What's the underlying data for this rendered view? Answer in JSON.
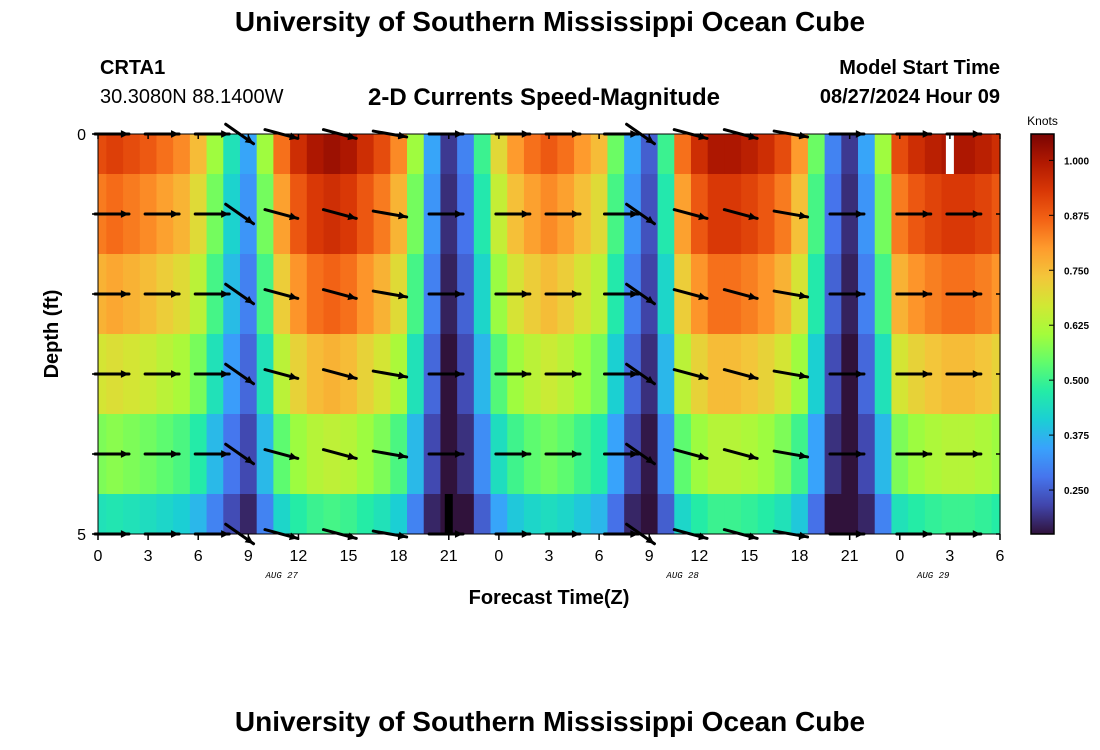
{
  "header": {
    "main_title": "University of Southern Mississippi Ocean Cube",
    "station_id": "CRTA1",
    "station_coords": "30.3080N  88.1400W",
    "model_start_label": "Model Start Time",
    "model_start_value": "08/27/2024 Hour 09"
  },
  "footer": {
    "repeat_title": "University of Southern Mississippi Ocean Cube"
  },
  "chart_data": {
    "type": "heatmap",
    "title": "2-D Currents Speed-Magnitude",
    "xlabel": "Forecast Time(Z)",
    "ylabel": "Depth (ft)",
    "x_tick_labels": [
      "0",
      "3",
      "6",
      "9",
      "12",
      "15",
      "18",
      "21",
      "0",
      "3",
      "6",
      "9",
      "12",
      "15",
      "18",
      "21",
      "0",
      "3",
      "6"
    ],
    "x_tick_hours": [
      0,
      3,
      6,
      9,
      12,
      15,
      18,
      21,
      24,
      27,
      30,
      33,
      36,
      39,
      42,
      45,
      48,
      51,
      54
    ],
    "date_labels": [
      {
        "label": "AUG 27",
        "hour": 11
      },
      {
        "label": "AUG 28",
        "hour": 35
      },
      {
        "label": "AUG 29",
        "hour": 50
      }
    ],
    "xlim": [
      0,
      54
    ],
    "y_tick_labels": [
      "0",
      "5"
    ],
    "ylim": [
      0,
      5
    ],
    "y_axis_inverted": true,
    "colorbar": {
      "title": "Knots",
      "range": [
        0.15,
        1.06
      ],
      "tick_labels": [
        "1.000",
        "0.875",
        "0.750",
        "0.625",
        "0.500",
        "0.375",
        "0.250"
      ],
      "tick_values": [
        1.0,
        0.875,
        0.75,
        0.625,
        0.5,
        0.375,
        0.25
      ],
      "colors": [
        "#30123b",
        "#4145ab",
        "#4675ed",
        "#39a2fc",
        "#1bcfd4",
        "#24eca6",
        "#61fc6c",
        "#a4fc3b",
        "#d1e834",
        "#f3c63a",
        "#fe9b2d",
        "#f36315",
        "#d93806",
        "#b11901",
        "#7a0403"
      ]
    },
    "depth_bins": [
      0,
      1,
      2,
      3,
      4,
      5
    ],
    "hours": [
      0,
      1,
      2,
      3,
      4,
      5,
      6,
      7,
      8,
      9,
      10,
      11,
      12,
      13,
      14,
      15,
      16,
      17,
      18,
      19,
      20,
      21,
      22,
      23,
      24,
      25,
      26,
      27,
      28,
      29,
      30,
      31,
      32,
      33,
      34,
      35,
      36,
      37,
      38,
      39,
      40,
      41,
      42,
      43,
      44,
      45,
      46,
      47,
      48,
      49,
      50,
      51,
      52,
      53,
      54
    ],
    "speed_profile_knots": [
      0.9,
      0.92,
      0.9,
      0.88,
      0.85,
      0.82,
      0.75,
      0.6,
      0.45,
      0.35,
      0.6,
      0.85,
      0.95,
      1.0,
      1.02,
      1.0,
      0.95,
      0.9,
      0.82,
      0.6,
      0.35,
      0.2,
      0.3,
      0.5,
      0.7,
      0.8,
      0.85,
      0.88,
      0.85,
      0.8,
      0.75,
      0.55,
      0.35,
      0.25,
      0.5,
      0.85,
      0.95,
      1.0,
      1.0,
      0.98,
      0.95,
      0.9,
      0.8,
      0.55,
      0.3,
      0.2,
      0.35,
      0.6,
      0.9,
      0.95,
      0.98,
      1.0,
      1.0,
      0.98,
      0.95
    ],
    "depth_scale": [
      1.0,
      0.93,
      0.85,
      0.75,
      0.63,
      0.5
    ],
    "vector_depths": [
      0,
      1,
      2,
      3,
      4,
      5
    ],
    "vector_hours": [
      0,
      3,
      6,
      8,
      10.5,
      14,
      17,
      20,
      24,
      27,
      30.5,
      32,
      35,
      38,
      41,
      44,
      48,
      51
    ],
    "vector_directions_deg": [
      0,
      0,
      0,
      -35,
      -15,
      -15,
      -10,
      0,
      0,
      0,
      0,
      -35,
      -15,
      -15,
      -10,
      0,
      0,
      0
    ],
    "data_gaps": [
      {
        "hour": 51,
        "depth_from": 0,
        "depth_to": 0.5,
        "color": "#ffffff"
      },
      {
        "hour": 21,
        "depth_from": 4.5,
        "depth_to": 5,
        "color": "#000000"
      }
    ]
  }
}
